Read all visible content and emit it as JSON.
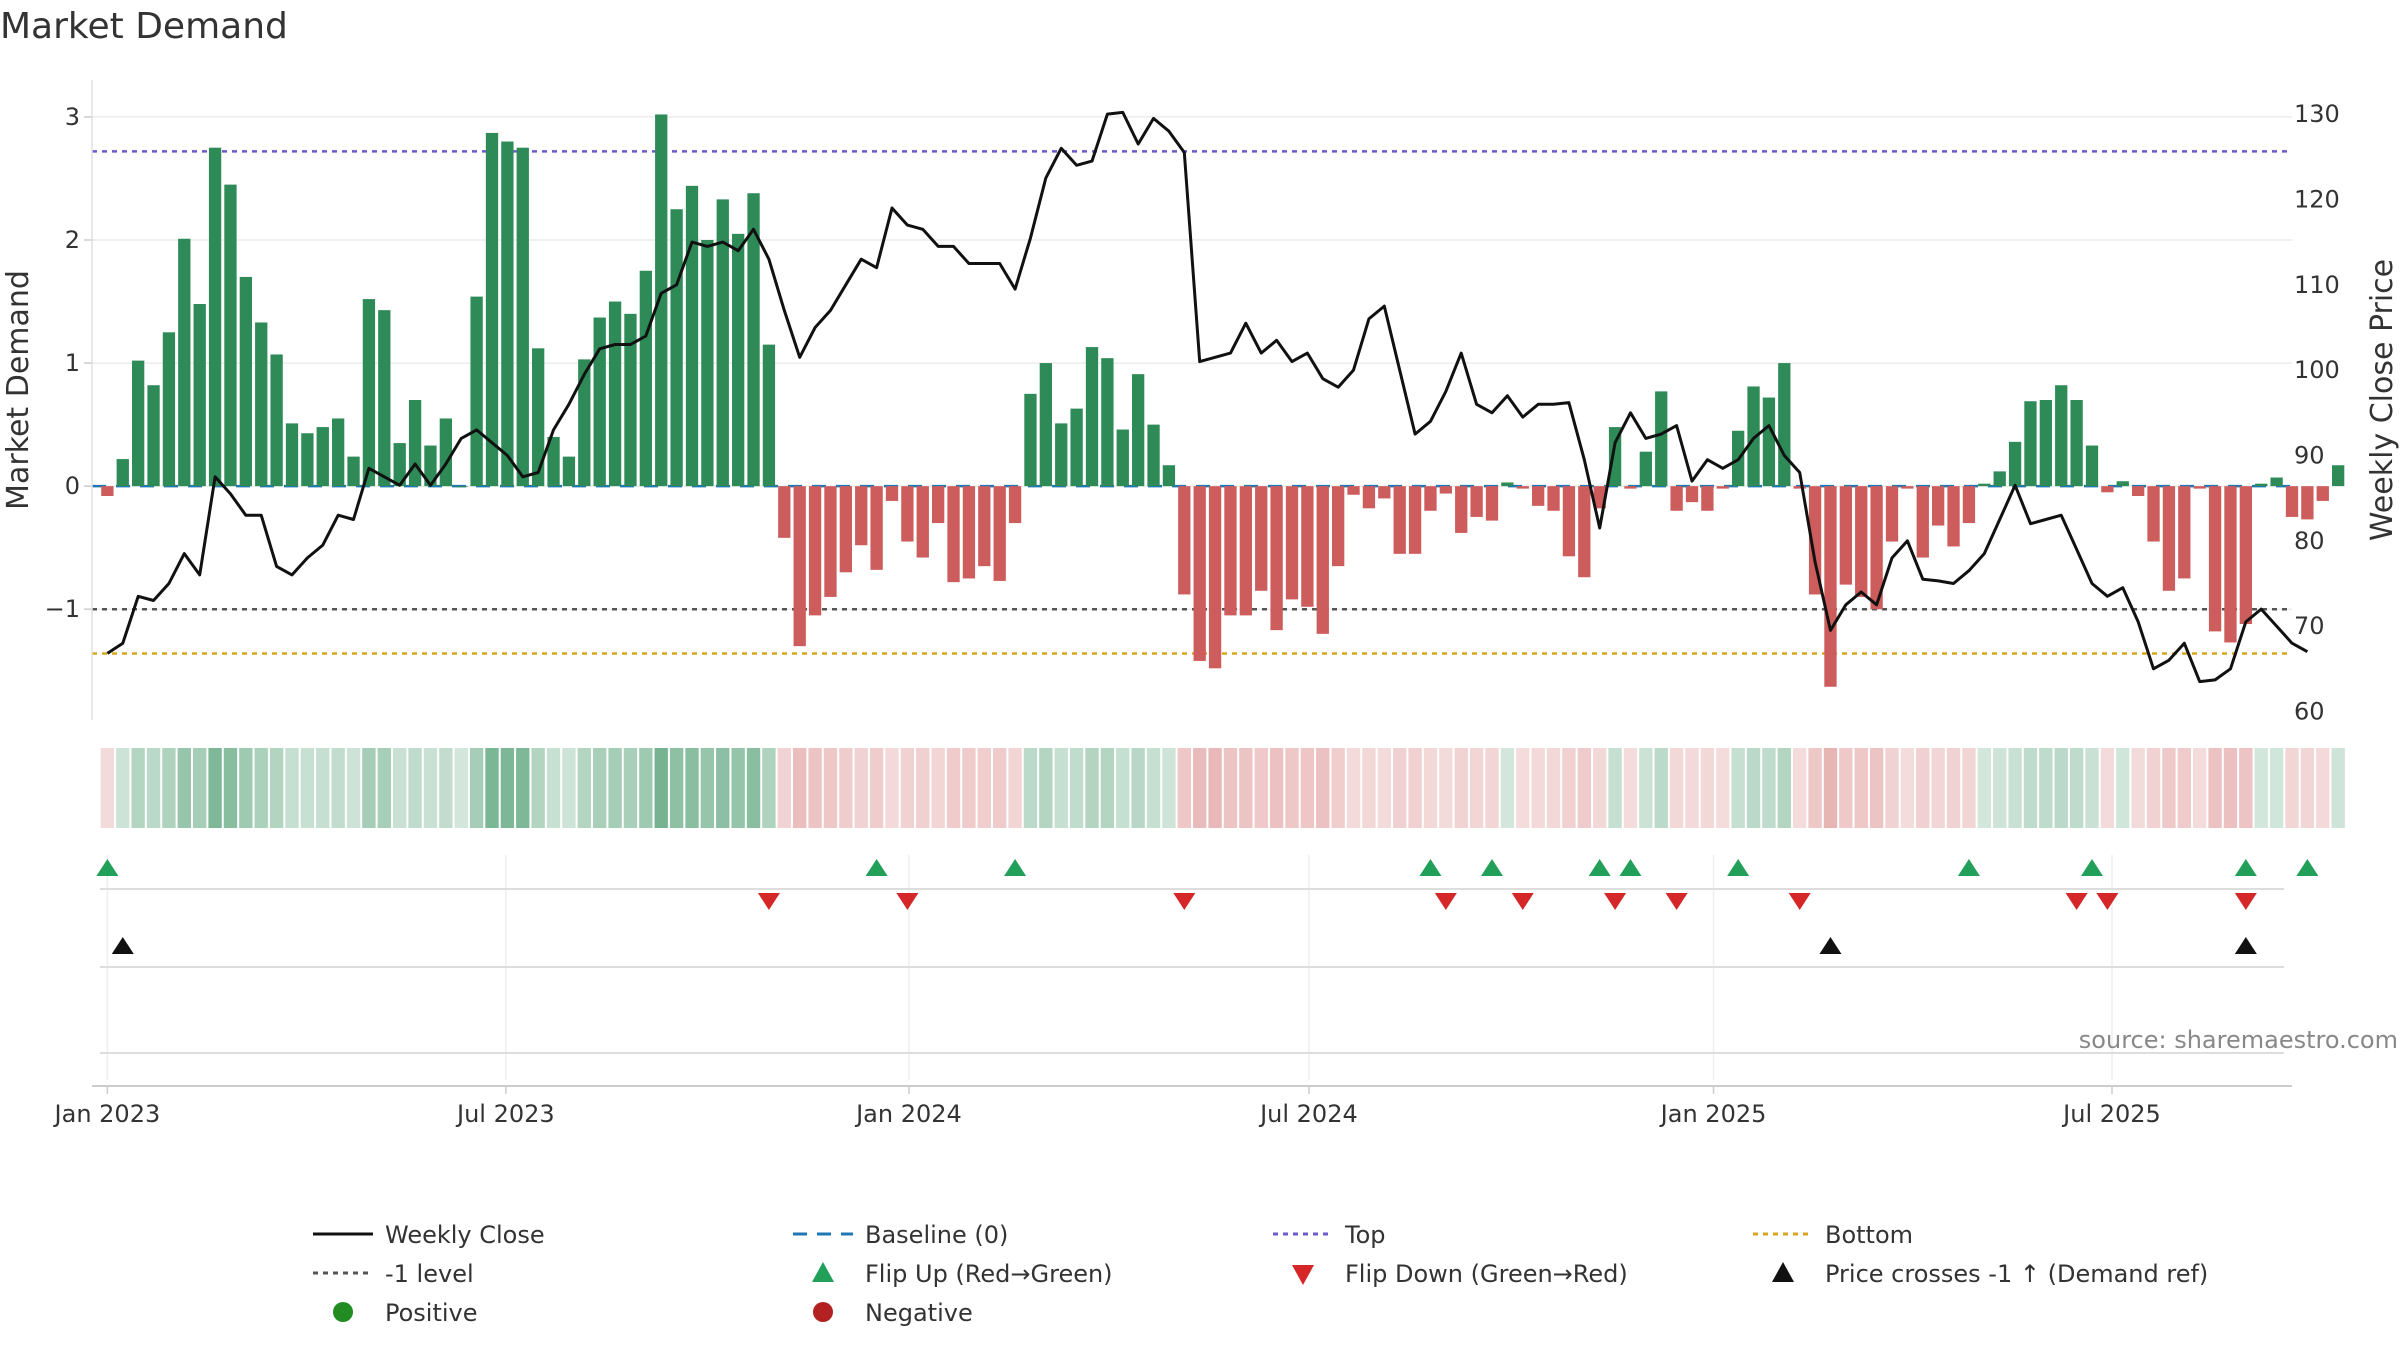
{
  "chart_data": {
    "type": "bar",
    "title": "Market Demand",
    "ylabel": "Market Demand",
    "y2label": "Weekly Close Price",
    "ylim": [
      -1.9,
      3.3
    ],
    "y2lim": [
      59,
      134
    ],
    "yticks": [
      "−1",
      "0",
      "1",
      "2",
      "3"
    ],
    "ytick_values": [
      -1,
      0,
      1,
      2,
      3
    ],
    "y2ticks": [
      "60",
      "70",
      "80",
      "90",
      "100",
      "110",
      "120",
      "130"
    ],
    "y2tick_values": [
      60,
      70,
      80,
      90,
      100,
      110,
      120,
      130
    ],
    "x_start_week": -1,
    "x_end_week": 142,
    "xticks": [
      {
        "label": "Jan 2023",
        "week": 0
      },
      {
        "label": "Jul 2023",
        "week": 25.9
      },
      {
        "label": "Jan 2024",
        "week": 52.1
      },
      {
        "label": "Jul 2024",
        "week": 78.1
      },
      {
        "label": "Jan 2025",
        "week": 104.4
      },
      {
        "label": "Jul 2025",
        "week": 130.3
      }
    ],
    "levels": {
      "top": 2.72,
      "bottom": -1.36,
      "minus_one": -1,
      "baseline": 0
    },
    "series": [
      {
        "name": "Market Demand",
        "values": [
          -0.08,
          0.22,
          1.02,
          0.82,
          1.25,
          2.01,
          1.48,
          2.75,
          2.45,
          1.7,
          1.33,
          1.07,
          0.51,
          0.43,
          0.48,
          0.55,
          0.24,
          1.52,
          1.43,
          0.35,
          0.7,
          0.33,
          0.55,
          0,
          1.54,
          2.87,
          2.8,
          2.75,
          1.12,
          0.4,
          0.24,
          1.03,
          1.37,
          1.5,
          1.4,
          1.75,
          3.02,
          2.25,
          2.44,
          2.0,
          2.33,
          2.05,
          2.38,
          1.15,
          -0.42,
          -1.3,
          -1.05,
          -0.9,
          -0.7,
          -0.48,
          -0.68,
          -0.12,
          -0.45,
          -0.58,
          -0.3,
          -0.78,
          -0.75,
          -0.65,
          -0.77,
          -0.3,
          0.75,
          1.0,
          0.51,
          0.63,
          1.13,
          1.04,
          0.46,
          0.91,
          0.5,
          0.17,
          -0.88,
          -1.42,
          -1.48,
          -1.05,
          -1.05,
          -0.85,
          -1.17,
          -0.92,
          -0.98,
          -1.2,
          -0.65,
          -0.07,
          -0.18,
          -0.1,
          -0.55,
          -0.55,
          -0.2,
          -0.06,
          -0.38,
          -0.25,
          -0.28,
          0.03,
          -0.02,
          -0.16,
          -0.2,
          -0.57,
          -0.74,
          -0.18,
          0.48,
          -0.02,
          0.28,
          0.77,
          -0.2,
          -0.13,
          -0.2,
          -0.02,
          0.45,
          0.81,
          0.72,
          1.0,
          -0.02,
          -0.88,
          -1.63,
          -0.8,
          -0.9,
          -1.0,
          -0.45,
          -0.02,
          -0.58,
          -0.32,
          -0.49,
          -0.3,
          0.02,
          0.12,
          0.36,
          0.69,
          0.7,
          0.82,
          0.7,
          0.33,
          -0.05,
          0.04,
          -0.08,
          -0.45,
          -0.85,
          -0.75,
          -0.02,
          -1.18,
          -1.27,
          -1.12,
          0.02,
          0.07,
          -0.25,
          -0.27,
          -0.12,
          0.17
        ]
      },
      {
        "name": "Weekly Close",
        "values": [
          66.8,
          68,
          73.5,
          73,
          75,
          78.5,
          76,
          87.5,
          85.5,
          83,
          83,
          77,
          76,
          78,
          79.5,
          83,
          82.5,
          88.5,
          87.5,
          86.5,
          89,
          86.5,
          89,
          92,
          93,
          91.5,
          90,
          87.5,
          88,
          93,
          96,
          99.5,
          102.5,
          103,
          103,
          104,
          109,
          110,
          115,
          114.5,
          115,
          114,
          116.5,
          113,
          107,
          101.5,
          105,
          107,
          110,
          113,
          112,
          119,
          117,
          116.5,
          114.5,
          114.5,
          112.5,
          112.5,
          112.5,
          109.5,
          115.5,
          122.5,
          126,
          124,
          124.5,
          130,
          130.2,
          126.5,
          129.5,
          128,
          125.5,
          101,
          101.5,
          102,
          105.5,
          102,
          103.5,
          101,
          102,
          99,
          98,
          100,
          106,
          107.5,
          100,
          92.5,
          94,
          97.5,
          102,
          96,
          95,
          97,
          94.5,
          96,
          96,
          96.2,
          89.5,
          81.5,
          91.5,
          95,
          92,
          92.5,
          93.5,
          87,
          89.5,
          88.5,
          89.5,
          92,
          93.5,
          90,
          88,
          77.5,
          69.5,
          72.5,
          74,
          72.5,
          78,
          80,
          75.5,
          75.3,
          75,
          76.5,
          78.5,
          82.5,
          86.5,
          82,
          82.5,
          83,
          79,
          75,
          73.5,
          74.5,
          70.5,
          65,
          66,
          68,
          63.5,
          63.7,
          65,
          70.5,
          72,
          70,
          68,
          67
        ]
      }
    ],
    "flip_up_weeks": [
      0,
      50,
      59,
      86,
      90,
      97,
      99,
      106,
      121,
      129,
      139,
      143
    ],
    "flip_down_weeks": [
      43,
      52,
      70,
      87,
      92,
      98,
      102,
      110,
      128,
      130,
      139
    ],
    "price_cross_weeks": [
      1,
      112,
      139
    ]
  },
  "source": "source: sharemaestro.com",
  "legend": {
    "weekly_close": "Weekly Close",
    "baseline": "Baseline (0)",
    "top": "Top",
    "bottom": "Bottom",
    "minus_one": "-1 level",
    "flip_up": "Flip Up (Red→Green)",
    "flip_down": "Flip Down (Green→Red)",
    "price_cross": "Price crosses -1 ↑ (Demand ref)",
    "positive": "Positive",
    "negative": "Negative"
  },
  "colors": {
    "positive": "#2e8b57",
    "negative": "#cd5c5c",
    "price": "#111111",
    "top": "#6a5acd",
    "bottom": "#daa520",
    "minus_one": "#555555",
    "baseline": "#1f77b4",
    "flip_up": "#22a05a",
    "flip_down": "#d62728",
    "cross": "#111111",
    "legend_positive": "#228b22",
    "legend_negative": "#b22222"
  }
}
